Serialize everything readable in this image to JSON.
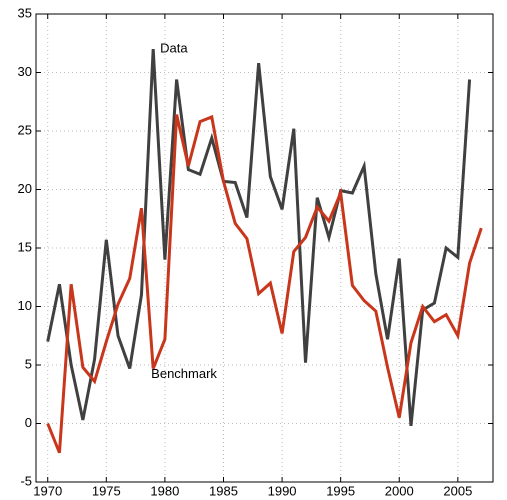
{
  "chart_data": {
    "type": "line",
    "x": [
      1970,
      1971,
      1972,
      1973,
      1974,
      1975,
      1976,
      1977,
      1978,
      1979,
      1980,
      1981,
      1982,
      1983,
      1984,
      1985,
      1986,
      1987,
      1988,
      1989,
      1990,
      1991,
      1992,
      1993,
      1994,
      1995,
      1996,
      1997,
      1998,
      1999,
      2000,
      2001,
      2002,
      2003,
      2004,
      2005,
      2006,
      2007
    ],
    "series": [
      {
        "name": "Data",
        "color": "#404040",
        "values": [
          7.0,
          11.9,
          5.0,
          0.3,
          5.5,
          15.7,
          7.5,
          4.7,
          11.0,
          32.0,
          14.0,
          29.4,
          21.7,
          21.3,
          24.4,
          20.7,
          20.6,
          17.6,
          30.8,
          21.1,
          18.3,
          25.2,
          5.2,
          19.3,
          15.9,
          19.9,
          19.7,
          22.0,
          12.8,
          7.2,
          14.1,
          -0.2,
          9.7,
          10.3,
          15.0,
          14.2,
          29.4,
          null
        ]
      },
      {
        "name": "Benchmark",
        "color": "#c8361b",
        "values": [
          0.0,
          -2.5,
          11.9,
          4.8,
          3.6,
          7.0,
          10.2,
          12.4,
          18.4,
          4.7,
          7.2,
          26.4,
          22.0,
          25.8,
          26.2,
          20.7,
          17.1,
          15.8,
          11.1,
          12.0,
          7.7,
          14.7,
          15.9,
          18.5,
          17.3,
          19.7,
          11.8,
          10.5,
          9.6,
          4.8,
          0.5,
          6.9,
          10.0,
          8.7,
          9.3,
          7.5,
          13.7,
          16.7
        ]
      }
    ],
    "xlim": [
      1969,
      2008
    ],
    "xticks": [
      1970,
      1975,
      1980,
      1985,
      1990,
      1995,
      2000,
      2005
    ],
    "ylim": [
      -5,
      35
    ],
    "yticks": [
      -5,
      0,
      5,
      10,
      15,
      20,
      25,
      30,
      35
    ],
    "grid": true
  }
}
